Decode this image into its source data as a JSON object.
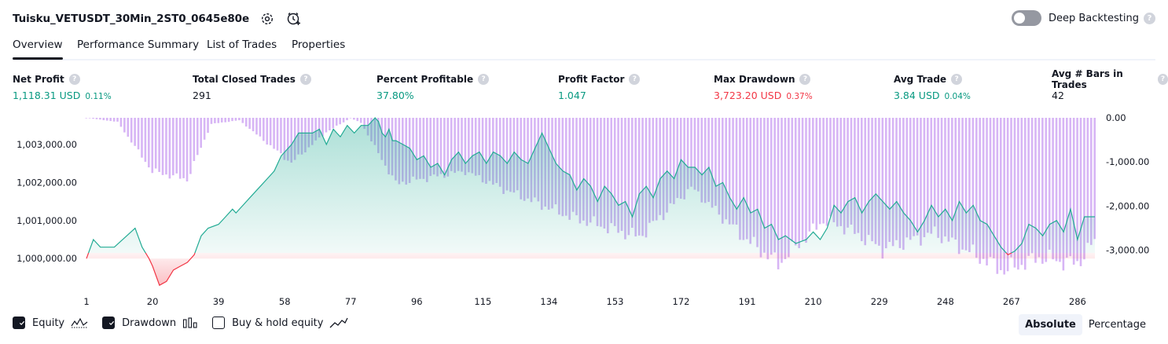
{
  "header": {
    "title": "Tuisku_VETUSDT_30Min_2ST0_0645e80e",
    "deep_backtesting_label": "Deep Backtesting",
    "deep_backtesting_enabled": false,
    "help_glyph": "?"
  },
  "tabs": [
    {
      "label": "Overview",
      "active": true
    },
    {
      "label": "Performance Summary",
      "active": false
    },
    {
      "label": "List of Trades",
      "active": false
    },
    {
      "label": "Properties",
      "active": false
    }
  ],
  "metrics": [
    {
      "label": "Net Profit",
      "value": "1,118.31 USD",
      "pct": "0.11%",
      "color": "#089981"
    },
    {
      "label": "Total Closed Trades",
      "value": "291",
      "pct": "",
      "color": "#131722"
    },
    {
      "label": "Percent Profitable",
      "value": "37.80%",
      "pct": "",
      "color": "#089981"
    },
    {
      "label": "Profit Factor",
      "value": "1.047",
      "pct": "",
      "color": "#089981"
    },
    {
      "label": "Max Drawdown",
      "value": "3,723.20 USD",
      "pct": "0.37%",
      "color": "#f23645"
    },
    {
      "label": "Avg Trade",
      "value": "3.84 USD",
      "pct": "0.04%",
      "color": "#089981"
    },
    {
      "label": "Avg # Bars in Trades",
      "value": "42",
      "pct": "",
      "color": "#131722"
    }
  ],
  "chart_data": {
    "type": "area",
    "x_tick_labels": [
      "1",
      "20",
      "39",
      "58",
      "77",
      "96",
      "115",
      "134",
      "153",
      "172",
      "191",
      "210",
      "229",
      "248",
      "267",
      "286"
    ],
    "x_range": [
      1,
      291
    ],
    "left_axis": {
      "ticks": [
        "1,000,000.00",
        "1,001,000.00",
        "1,002,000.00",
        "1,003,000.00"
      ],
      "range": [
        999200,
        1003700
      ]
    },
    "right_axis": {
      "ticks": [
        "0.00",
        "-1,000.00",
        "-2,000.00",
        "-3,000.00"
      ],
      "range": [
        -3723.2,
        0
      ]
    },
    "baseline": 1000000,
    "series": [
      {
        "name": "Equity",
        "axis": "left",
        "colors": {
          "above": "#22ab94",
          "below": "#f23645"
        },
        "x": [
          1,
          3,
          5,
          7,
          9,
          15,
          17,
          19,
          20,
          22,
          24,
          26,
          28,
          30,
          32,
          34,
          36,
          39,
          41,
          43,
          44,
          46,
          48,
          51,
          53,
          55,
          57,
          59,
          60,
          62,
          64,
          66,
          68,
          70,
          72,
          73,
          74,
          76,
          78,
          80,
          82,
          84,
          85,
          86,
          87,
          88,
          89,
          90,
          92,
          94,
          96,
          98,
          100,
          102,
          104,
          106,
          108,
          110,
          112,
          114,
          116,
          118,
          120,
          122,
          124,
          126,
          128,
          130,
          132,
          134,
          136,
          138,
          140,
          142,
          144,
          146,
          148,
          150,
          152,
          154,
          156,
          158,
          160,
          162,
          164,
          166,
          168,
          170,
          172,
          174,
          176,
          178,
          180,
          182,
          184,
          186,
          188,
          190,
          192,
          194,
          196,
          198,
          200,
          202,
          205,
          208,
          210,
          212,
          214,
          216,
          218,
          220,
          222,
          224,
          226,
          228,
          230,
          232,
          234,
          236,
          238,
          240,
          242,
          244,
          246,
          248,
          250,
          252,
          254,
          256,
          258,
          260,
          262,
          264,
          266,
          268,
          270,
          272,
          274,
          276,
          278,
          280,
          282,
          284,
          286,
          288,
          290,
          291
        ],
        "y": [
          1000000,
          1000500,
          1000300,
          1000300,
          1000300,
          1000800,
          1000300,
          1000000,
          999800,
          999300,
          999400,
          999700,
          999800,
          999900,
          1000100,
          1000600,
          1000800,
          1000900,
          1001100,
          1001300,
          1001200,
          1001400,
          1001600,
          1001900,
          1002100,
          1002300,
          1002700,
          1002900,
          1003000,
          1003300,
          1003300,
          1003300,
          1003400,
          1003000,
          1003400,
          1003300,
          1003200,
          1003500,
          1003300,
          1003500,
          1003500,
          1003700,
          1003600,
          1003300,
          1003200,
          1003400,
          1003100,
          1003100,
          1003000,
          1002900,
          1002600,
          1002700,
          1002400,
          1002500,
          1002200,
          1002600,
          1002800,
          1002500,
          1002700,
          1002800,
          1002500,
          1002800,
          1002700,
          1002500,
          1002800,
          1002600,
          1002500,
          1002900,
          1003300,
          1002900,
          1002500,
          1002300,
          1002200,
          1001800,
          1002100,
          1001900,
          1001500,
          1001900,
          1001700,
          1001400,
          1001500,
          1001100,
          1001700,
          1001900,
          1001600,
          1002100,
          1002300,
          1002100,
          1002600,
          1002400,
          1002400,
          1002200,
          1002400,
          1001900,
          1002000,
          1001600,
          1001300,
          1001600,
          1001200,
          1001300,
          1000800,
          1000900,
          1000500,
          1000600,
          1000400,
          1000500,
          1000700,
          1000500,
          1000800,
          1001400,
          1001200,
          1001500,
          1001600,
          1001200,
          1001500,
          1001700,
          1001500,
          1001300,
          1001500,
          1001200,
          1001000,
          1000700,
          1001000,
          1001400,
          1001100,
          1001300,
          1001000,
          1001500,
          1001200,
          1001400,
          1001000,
          1000900,
          1000600,
          1000300,
          1000100,
          1000200,
          1000400,
          1000900,
          1000800,
          1000600,
          1000900,
          1001000,
          1000700,
          1001300,
          1000500,
          1001100,
          1001100,
          1001100
        ]
      },
      {
        "name": "Drawdown",
        "axis": "right",
        "color": "#d7b5f5",
        "x": [
          1,
          10,
          20,
          30,
          37,
          45,
          60,
          70,
          77,
          80,
          90,
          110,
          120,
          140,
          160,
          175,
          190,
          200,
          213,
          220,
          230,
          245,
          265,
          275,
          286,
          291
        ],
        "y": [
          0,
          -100,
          -1300,
          -1500,
          -150,
          -60,
          -1100,
          -350,
          -10,
          -120,
          -1600,
          -1300,
          -1700,
          -2400,
          -2900,
          -1700,
          -2900,
          -3550,
          -2500,
          -2700,
          -3200,
          -2800,
          -3723.2,
          -3400,
          -3550,
          -3000
        ]
      }
    ],
    "legend": [
      {
        "label": "Equity",
        "checked": true,
        "icon": "equity-line-icon"
      },
      {
        "label": "Drawdown",
        "checked": true,
        "icon": "drawdown-bars-icon"
      },
      {
        "label": "Buy & hold equity",
        "checked": false,
        "icon": "buy-hold-line-icon"
      }
    ],
    "modes": [
      {
        "label": "Absolute",
        "active": true
      },
      {
        "label": "Percentage",
        "active": false
      }
    ]
  }
}
